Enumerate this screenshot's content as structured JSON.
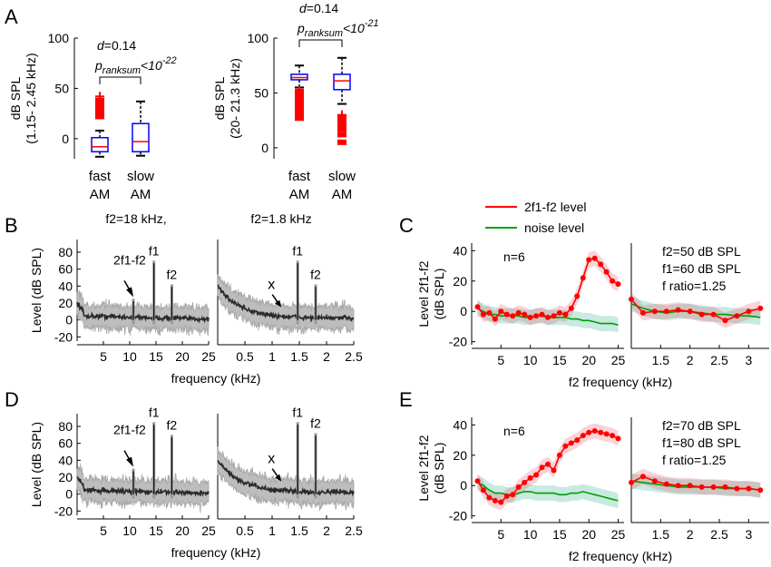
{
  "chart_data": [
    {
      "panel": "A",
      "type": "box",
      "ylabel": "dB SPL",
      "ylabel_sub": "(1.15- 2.45 kHz)",
      "ylim": [
        -20,
        100
      ],
      "yticks": [
        "100",
        "50",
        "0"
      ],
      "categories": [
        {
          "line1": "fast",
          "line2": "AM",
          "color": "#ff0000"
        },
        {
          "line1": "slow",
          "line2": "AM",
          "color": "#0000ff"
        }
      ],
      "boxes": [
        {
          "min": -18,
          "q1": -13,
          "median": -8,
          "q3": 1,
          "max": 8,
          "color": "#0000ff",
          "median_color": "#ff0000",
          "outliers_low": [],
          "outliers_high": [
            22,
            25,
            28,
            31,
            35,
            38,
            42
          ]
        },
        {
          "min": -17,
          "q1": -13,
          "median": -3,
          "q3": 15,
          "max": 37,
          "color": "#0000ff",
          "median_color": "#ff0000",
          "outliers_low": [],
          "outliers_high": []
        }
      ],
      "outlier_color": "#ff0000",
      "stat_d": "d=0.14",
      "stat_p_main": "p",
      "stat_p_sub": "ranksum",
      "stat_p_rest": "<10",
      "stat_p_exp": "-22"
    },
    {
      "panel": "A2",
      "type": "box",
      "ylabel": "dB SPL",
      "ylabel_sub": "(20- 21.3 kHz)",
      "ylim": [
        -10,
        100
      ],
      "yticks": [
        "100",
        "50",
        "0"
      ],
      "categories": [
        {
          "line1": "fast",
          "line2": "AM",
          "color": "#ff0000"
        },
        {
          "line1": "slow",
          "line2": "AM",
          "color": "#0000ff"
        }
      ],
      "boxes": [
        {
          "min": 55,
          "q1": 62,
          "median": 64,
          "q3": 67,
          "max": 75,
          "color": "#0000ff",
          "median_color": "#ff0000",
          "outliers_low": [
            27,
            30,
            34,
            38,
            42,
            46,
            50,
            53
          ],
          "outliers_high": []
        },
        {
          "min": 40,
          "q1": 53,
          "median": 61,
          "q3": 67,
          "max": 82,
          "color": "#0000ff",
          "median_color": "#ff0000",
          "outliers_low": [
            5,
            12,
            17,
            20,
            22,
            24,
            27,
            30
          ],
          "outliers_high": []
        }
      ],
      "outlier_color": "#ff0000",
      "stat_d": "d=0.14",
      "stat_p_main": "p",
      "stat_p_sub": "ranksum",
      "stat_p_rest": "<10",
      "stat_p_exp": "-21"
    },
    {
      "panel": "B",
      "type": "line",
      "title_left": "f2=18 kHz,",
      "title_right": "f2=1.8 kHz",
      "ylabel": "Level (dB SPL)",
      "xlabel": "frequency (kHz)",
      "ylim": [
        -25,
        95
      ],
      "yticks": [
        "80",
        "60",
        "40",
        "20",
        "0",
        "-20"
      ],
      "left": {
        "xlim": [
          0,
          25
        ],
        "xticks": [
          "5",
          "10",
          "15",
          "20",
          "25"
        ],
        "peaks": [
          {
            "x": 10.7,
            "y": 25,
            "label": "2f1-f2"
          },
          {
            "x": 14.6,
            "y": 70,
            "label": "f1"
          },
          {
            "x": 18,
            "y": 42,
            "label": "f2"
          }
        ]
      },
      "right": {
        "xlim": [
          0,
          2.5
        ],
        "xticks": [
          "0.5",
          "1",
          "1.5",
          "2",
          "2.5"
        ],
        "peaks": [
          {
            "x": 1.47,
            "y": 70,
            "label": "f1"
          },
          {
            "x": 1.8,
            "y": 42,
            "label": "f2"
          }
        ],
        "missing_marker": "x",
        "missing_x": 1.12
      }
    },
    {
      "panel": "C",
      "type": "line",
      "ylabel": "Level 2f1-f2",
      "ylabel_sub": "(dB SPL)",
      "xlabel": "f2 frequency (kHz)",
      "ylim": [
        -22,
        45
      ],
      "yticks": [
        "40",
        "20",
        "0",
        "-20"
      ],
      "legend": [
        {
          "name": "2f1-f2 level",
          "color": "#ff0000"
        },
        {
          "name": "noise  level",
          "color": "#00a000"
        }
      ],
      "n_label": "n=6",
      "params": [
        "f2=50 dB SPL",
        "f1=60 dB SPL",
        "f ratio=1.25"
      ],
      "left": {
        "xlim": [
          0,
          26
        ],
        "xticks": [
          "5",
          "10",
          "15",
          "20",
          "25"
        ],
        "x": [
          1,
          2,
          3,
          4,
          5,
          6,
          7,
          8,
          9,
          10,
          11,
          12,
          13,
          14,
          15,
          16,
          17,
          18,
          19,
          20,
          21,
          22,
          23,
          24,
          25
        ],
        "signal": [
          3,
          -2,
          -1,
          -5,
          0,
          -2,
          -3,
          -1,
          -2,
          -4,
          -3,
          -2,
          -4,
          -3,
          -1,
          -2,
          2,
          10,
          22,
          34,
          35,
          31,
          26,
          20,
          18
        ],
        "noise": [
          2,
          0,
          -2,
          -2,
          -3,
          -3,
          -3,
          -3,
          -4,
          -4,
          -3,
          -3,
          -4,
          -4,
          -4,
          -4,
          -5,
          -5,
          -6,
          -6,
          -7,
          -8,
          -8,
          -8,
          -9
        ]
      },
      "right": {
        "xlim": [
          1.0,
          3.35
        ],
        "xticks": [
          "1.5",
          "2",
          "2.5",
          "3"
        ],
        "x": [
          1.0,
          1.2,
          1.4,
          1.6,
          1.8,
          2.0,
          2.2,
          2.4,
          2.6,
          2.8,
          3.0,
          3.2
        ],
        "signal": [
          8,
          -1,
          0,
          0,
          1,
          0,
          -2,
          -2,
          -6,
          -3,
          0,
          2
        ],
        "noise": [
          5,
          2,
          0,
          -1,
          0,
          0,
          -1,
          -2,
          -2,
          -3,
          -3,
          -4
        ]
      }
    },
    {
      "panel": "D",
      "type": "line",
      "ylabel": "Level (dB SPL)",
      "xlabel": "frequency (kHz)",
      "ylim": [
        -25,
        95
      ],
      "yticks": [
        "80",
        "60",
        "40",
        "20",
        "0",
        "-20"
      ],
      "left": {
        "xlim": [
          0,
          25
        ],
        "xticks": [
          "5",
          "10",
          "15",
          "20",
          "25"
        ],
        "peaks": [
          {
            "x": 10.7,
            "y": 30,
            "label": "2f1-f2"
          },
          {
            "x": 14.6,
            "y": 85,
            "label": "f1"
          },
          {
            "x": 18,
            "y": 70,
            "label": "f2"
          }
        ]
      },
      "right": {
        "xlim": [
          0,
          2.5
        ],
        "xticks": [
          "0.5",
          "1",
          "1.5",
          "2",
          "2.5"
        ],
        "peaks": [
          {
            "x": 1.47,
            "y": 85,
            "label": "f1"
          },
          {
            "x": 1.8,
            "y": 72,
            "label": "f2"
          }
        ],
        "missing_marker": "x",
        "missing_x": 1.12
      }
    },
    {
      "panel": "E",
      "type": "line",
      "ylabel": "Level 2f1-f2",
      "ylabel_sub": "(dB SPL)",
      "xlabel": "f2 frequency (kHz)",
      "ylim": [
        -22,
        45
      ],
      "yticks": [
        "40",
        "20",
        "0",
        "-20"
      ],
      "n_label": "n=6",
      "params": [
        "f2=70 dB SPL",
        "f1=80 dB SPL",
        "f ratio=1.25"
      ],
      "left": {
        "xlim": [
          0,
          26
        ],
        "xticks": [
          "5",
          "10",
          "15",
          "20",
          "25"
        ],
        "x": [
          1,
          2,
          3,
          4,
          5,
          6,
          7,
          8,
          9,
          10,
          11,
          12,
          13,
          14,
          15,
          16,
          17,
          18,
          19,
          20,
          21,
          22,
          23,
          24,
          25
        ],
        "signal": [
          3,
          -3,
          -8,
          -10,
          -11,
          -7,
          -6,
          -1,
          2,
          5,
          7,
          12,
          14,
          10,
          20,
          26,
          28,
          30,
          33,
          35,
          36,
          35,
          34,
          33,
          31
        ],
        "noise": [
          2,
          0,
          -3,
          -5,
          -5,
          -6,
          -6,
          -5,
          -4,
          -4,
          -5,
          -5,
          -5,
          -5,
          -6,
          -6,
          -5,
          -5,
          -4,
          -5,
          -6,
          -7,
          -8,
          -9,
          -10
        ]
      },
      "right": {
        "xlim": [
          1.0,
          3.35
        ],
        "xticks": [
          "1.5",
          "2",
          "2.5",
          "3"
        ],
        "x": [
          1.0,
          1.2,
          1.4,
          1.6,
          1.8,
          2.0,
          2.2,
          2.4,
          2.6,
          2.8,
          3.0,
          3.2
        ],
        "signal": [
          2,
          6,
          3,
          1,
          0,
          0,
          -1,
          -1,
          -1,
          -2,
          -2,
          -3
        ],
        "noise": [
          3,
          2,
          1,
          0,
          -1,
          -1,
          -1,
          -1,
          -2,
          -2,
          -2,
          -3
        ]
      }
    }
  ]
}
